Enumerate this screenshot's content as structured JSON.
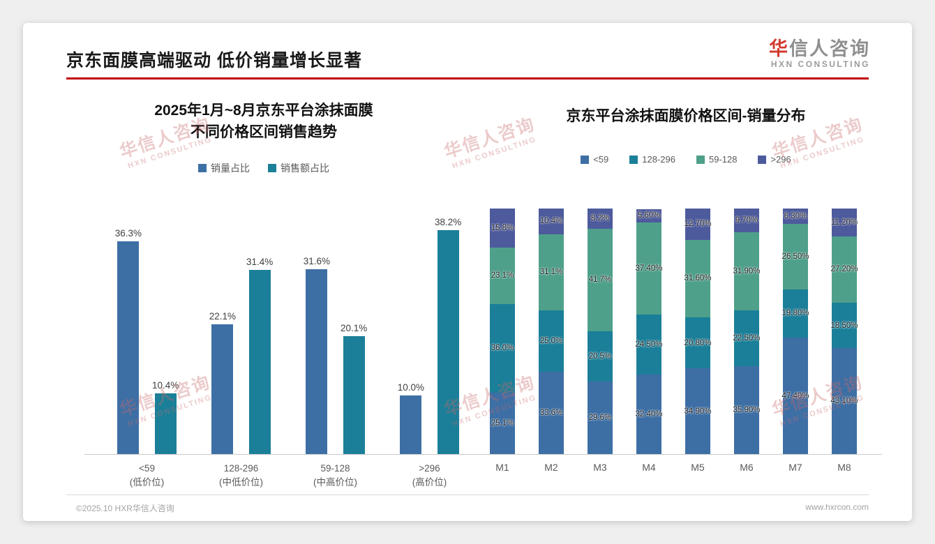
{
  "slide": {
    "title": "京东面膜高端驱动 低价销量增长显著",
    "accent_color": "#c00000"
  },
  "logo": {
    "cn_first": "华",
    "cn_rest": "信人咨询",
    "en": "HXN CONSULTING"
  },
  "watermark": {
    "line1": "华信人咨询",
    "line2": "HXN CONSULTING"
  },
  "footer": {
    "left": "©2025.10 HXR华信人咨询",
    "right": "www.hxrcon.com"
  },
  "chart_data": [
    {
      "type": "bar",
      "stacked": false,
      "title": "2025年1月~8月京东平台涂抹面膜 不同价格区间销售趋势",
      "title_lines": [
        "2025年1月~8月京东平台涂抹面膜",
        "不同价格区间销售趋势"
      ],
      "categories": [
        "<59",
        "128-296",
        "59-128",
        ">296"
      ],
      "category_sublabels": [
        "(低价位)",
        "(中低价位)",
        "(中高价位)",
        "(高价位)"
      ],
      "series": [
        {
          "name": "销量占比",
          "color": "#3d6fa5",
          "values": [
            36.3,
            22.1,
            31.6,
            10.0
          ],
          "labels": [
            "36.3%",
            "22.1%",
            "31.6%",
            "10.0%"
          ]
        },
        {
          "name": "销售额占比",
          "color": "#1b7f99",
          "values": [
            10.4,
            31.4,
            20.1,
            38.2
          ],
          "labels": [
            "10.4%",
            "31.4%",
            "20.1%",
            "38.2%"
          ]
        }
      ],
      "ylim": [
        0,
        40
      ],
      "grid": false,
      "legend_position": "top"
    },
    {
      "type": "bar",
      "stacked": true,
      "title": "京东平台涂抹面膜价格区间-销量分布",
      "categories": [
        "M1",
        "M2",
        "M3",
        "M4",
        "M5",
        "M6",
        "M7",
        "M8"
      ],
      "series": [
        {
          "name": "<59",
          "color": "#3d6fa5",
          "values": [
            25.1,
            33.6,
            29.6,
            32.4,
            34.9,
            35.9,
            47.4,
            43.1
          ],
          "labels": [
            "25.1%",
            "33.6%",
            "29.6%",
            "32.40%",
            "34.90%",
            "35.90%",
            "47.40%",
            "43.10%"
          ]
        },
        {
          "name": "128-296",
          "color": "#1b7f99",
          "values": [
            36.0,
            25.0,
            20.5,
            24.5,
            20.8,
            22.5,
            19.8,
            18.5
          ],
          "labels": [
            "36.0%",
            "25.0%",
            "20.5%",
            "24.50%",
            "20.80%",
            "22.50%",
            "19.80%",
            "18.50%"
          ]
        },
        {
          "name": "59-128",
          "color": "#4fa08b",
          "values": [
            23.1,
            31.1,
            41.7,
            37.4,
            31.6,
            31.9,
            26.5,
            27.2
          ],
          "labels": [
            "23.1%",
            "31.1%",
            "41.7%",
            "37.40%",
            "31.60%",
            "31.90%",
            "26.50%",
            "27.20%"
          ]
        },
        {
          "name": ">296",
          "color": "#4d5a9c",
          "values": [
            15.8,
            10.4,
            8.2,
            5.6,
            12.7,
            9.7,
            6.3,
            11.2
          ],
          "labels": [
            "15.8%",
            "10.4%",
            "8.2%",
            "5.60%",
            "12.70%",
            "9.70%",
            "6.30%",
            "11.20%"
          ]
        }
      ],
      "ylim": [
        0,
        100
      ],
      "grid": false,
      "legend_position": "top"
    }
  ]
}
